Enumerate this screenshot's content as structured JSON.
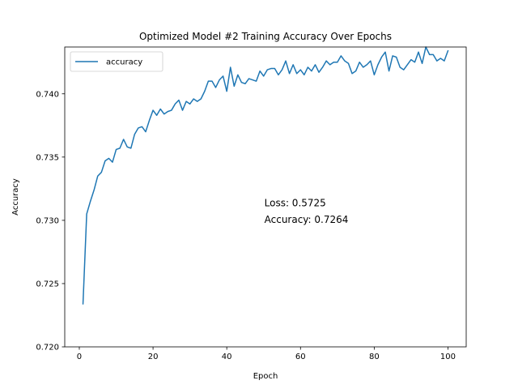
{
  "chart_data": {
    "type": "line",
    "title": "Optimized Model #2 Training Accuracy Over Epochs",
    "xlabel": "Epoch",
    "ylabel": "Accuracy",
    "xlim": [
      -3.95,
      104.95
    ],
    "ylim": [
      0.72,
      0.7437
    ],
    "xticks": [
      0,
      20,
      40,
      60,
      80,
      100
    ],
    "xtick_labels": [
      "0",
      "20",
      "40",
      "60",
      "80",
      "100"
    ],
    "yticks": [
      0.72,
      0.725,
      0.73,
      0.735,
      0.74
    ],
    "ytick_labels": [
      "0.720",
      "0.725",
      "0.730",
      "0.735",
      "0.740"
    ],
    "grid": false,
    "legend_position": "top-left",
    "series": [
      {
        "name": "accuracy",
        "color": "#1f77b4",
        "x": [
          1,
          2,
          3,
          4,
          5,
          6,
          7,
          8,
          9,
          10,
          11,
          12,
          13,
          14,
          15,
          16,
          17,
          18,
          19,
          20,
          21,
          22,
          23,
          24,
          25,
          26,
          27,
          28,
          29,
          30,
          31,
          32,
          33,
          34,
          35,
          36,
          37,
          38,
          39,
          40,
          41,
          42,
          43,
          44,
          45,
          46,
          47,
          48,
          49,
          50,
          51,
          52,
          53,
          54,
          55,
          56,
          57,
          58,
          59,
          60,
          61,
          62,
          63,
          64,
          65,
          66,
          67,
          68,
          69,
          70,
          71,
          72,
          73,
          74,
          75,
          76,
          77,
          78,
          79,
          80,
          81,
          82,
          83,
          84,
          85,
          86,
          87,
          88,
          89,
          90,
          91,
          92,
          93,
          94,
          95,
          96,
          97,
          98,
          99,
          100
        ],
        "y": [
          0.7234,
          0.7305,
          0.7315,
          0.7324,
          0.7335,
          0.7338,
          0.7347,
          0.7349,
          0.7346,
          0.7356,
          0.7357,
          0.7364,
          0.7358,
          0.7357,
          0.7368,
          0.7373,
          0.7374,
          0.737,
          0.7379,
          0.7387,
          0.7383,
          0.7388,
          0.7384,
          0.7386,
          0.7387,
          0.7392,
          0.7395,
          0.7387,
          0.7394,
          0.7392,
          0.7396,
          0.7394,
          0.7396,
          0.7402,
          0.741,
          0.741,
          0.7405,
          0.7411,
          0.7414,
          0.7402,
          0.7421,
          0.7406,
          0.7415,
          0.7409,
          0.7408,
          0.7412,
          0.7411,
          0.741,
          0.7418,
          0.7414,
          0.7419,
          0.742,
          0.742,
          0.7415,
          0.7419,
          0.7426,
          0.7416,
          0.7423,
          0.7416,
          0.7419,
          0.7415,
          0.7421,
          0.7418,
          0.7423,
          0.7417,
          0.7421,
          0.7426,
          0.7423,
          0.7425,
          0.7425,
          0.743,
          0.7426,
          0.7424,
          0.7416,
          0.7418,
          0.7425,
          0.7421,
          0.7423,
          0.7426,
          0.7415,
          0.7423,
          0.7429,
          0.7433,
          0.7418,
          0.743,
          0.7429,
          0.7421,
          0.7419,
          0.7423,
          0.7427,
          0.7425,
          0.7433,
          0.7424,
          0.7437,
          0.7431,
          0.7431,
          0.7426,
          0.7428,
          0.7426,
          0.7434
        ]
      }
    ],
    "annotations": [
      {
        "text": "Loss: 0.5725",
        "x": 50.2,
        "y": 0.7311
      },
      {
        "text": "Accuracy: 0.7264",
        "x": 50.2,
        "y": 0.7298
      }
    ]
  }
}
